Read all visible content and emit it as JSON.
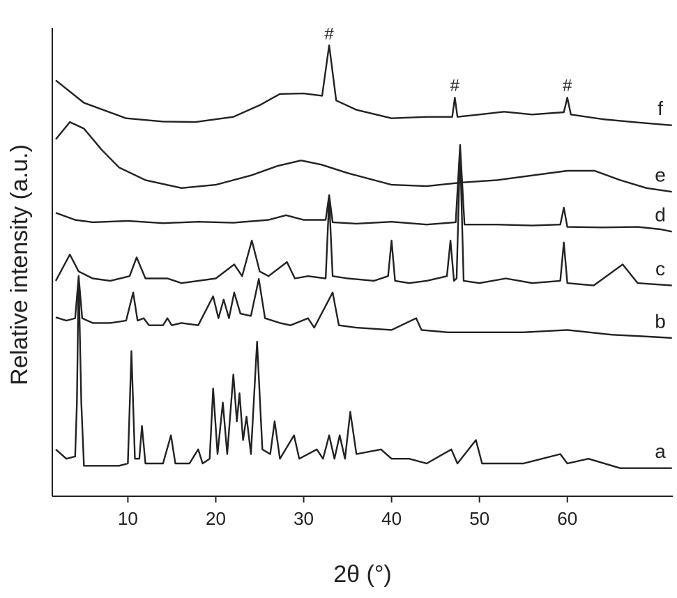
{
  "chart_data": {
    "type": "line",
    "x_label": "2θ (°)",
    "y_label": "Relative intensity (a.u.)",
    "xlim": [
      1.4,
      72
    ],
    "ylim": [
      0,
      100
    ],
    "xticks": [
      10,
      20,
      30,
      40,
      50,
      60
    ],
    "grid": false,
    "series": [
      {
        "name": "a",
        "color": "#222222",
        "x": [
          1.8,
          3,
          4,
          4.2,
          4.4,
          4.7,
          5,
          7,
          9,
          10,
          10.4,
          10.8,
          11.3,
          11.6,
          12,
          14,
          14.9,
          15.4,
          17,
          18,
          18.5,
          19.3,
          19.7,
          20.2,
          20.8,
          21.3,
          22,
          22.4,
          22.7,
          23.1,
          23.5,
          24,
          24.7,
          25.3,
          26.2,
          26.7,
          27.3,
          28.9,
          29.5,
          31.5,
          32.2,
          32.9,
          33.5,
          34.1,
          34.7,
          35.3,
          36,
          38.8,
          40,
          42,
          44,
          46.8,
          47.5,
          49.6,
          50.3,
          55,
          59.2,
          60,
          62.4,
          66,
          68,
          71.9
        ],
        "values": [
          10,
          8,
          8.5,
          20,
          47,
          20,
          6.5,
          6.5,
          6.5,
          7,
          31,
          8,
          8,
          15,
          7,
          7,
          13,
          7,
          7,
          10,
          7,
          8,
          23,
          9,
          20,
          9,
          26,
          16,
          22,
          12,
          17,
          9,
          33,
          10,
          9,
          16,
          8,
          13,
          8,
          10,
          8,
          13,
          8,
          13,
          8,
          18,
          9,
          10,
          8,
          8,
          7,
          10,
          7,
          12,
          7,
          7,
          9,
          7,
          8,
          6,
          6,
          6
        ]
      },
      {
        "name": "b",
        "color": "#222222",
        "x": [
          1.8,
          3,
          4,
          4.4,
          4.8,
          6,
          8,
          9.8,
          10.6,
          11.1,
          11.8,
          12.4,
          14,
          14.5,
          15,
          16.1,
          18,
          19.7,
          20.3,
          20.9,
          21.5,
          22.1,
          22.8,
          24,
          24.9,
          25.6,
          27.3,
          28.5,
          30.5,
          31.2,
          33.3,
          34,
          36,
          40,
          42.8,
          43.4,
          46.4,
          50,
          55,
          60,
          65,
          70,
          71.9
        ],
        "values": [
          38.2,
          37.5,
          38,
          47,
          38,
          37,
          37,
          37.5,
          43.5,
          37.5,
          38,
          36.5,
          36.5,
          38,
          36.5,
          37,
          36.5,
          42.7,
          38,
          42,
          38,
          43.5,
          39,
          38.5,
          46.4,
          38,
          37,
          36.5,
          38,
          36,
          43.5,
          36.5,
          36,
          35.5,
          38,
          35.5,
          35,
          35,
          35,
          35.5,
          34.5,
          34,
          33.8
        ]
      },
      {
        "name": "c",
        "color": "#222222",
        "x": [
          1.8,
          3.4,
          4.4,
          6,
          8,
          10.2,
          11,
          12,
          14.5,
          16.1,
          18,
          20,
          22.1,
          23,
          24.1,
          25,
          26,
          28.1,
          29,
          30.5,
          32.5,
          32.9,
          33.3,
          35,
          38,
          39.6,
          40,
          40.4,
          42,
          44,
          46.3,
          46.7,
          47.1,
          47.4,
          47.8,
          48.2,
          50,
          53,
          56,
          59.2,
          59.6,
          60,
          63,
          66.3,
          68,
          71.9
        ],
        "values": [
          46,
          51.6,
          48,
          46.5,
          46,
          47,
          51,
          46.5,
          46.5,
          45.5,
          46,
          46.5,
          49.5,
          47,
          54.6,
          48,
          47,
          50,
          46.5,
          47,
          46.5,
          63.5,
          47,
          46.5,
          46,
          47,
          54.6,
          46,
          45.5,
          46,
          47,
          54.6,
          46,
          46.5,
          74,
          46,
          45.5,
          46.5,
          45.5,
          46,
          54.2,
          45.5,
          45,
          49.5,
          45.5,
          45
        ]
      },
      {
        "name": "d",
        "color": "#222222",
        "x": [
          1.8,
          4,
          6,
          10,
          14,
          18,
          22,
          26,
          28,
          30,
          32.5,
          32.9,
          33.3,
          36,
          40,
          44,
          47.3,
          47.8,
          48.3,
          52,
          56,
          59.2,
          59.6,
          60,
          64,
          68,
          70.6,
          71.9
        ],
        "values": [
          60.5,
          59,
          58.5,
          58.8,
          58.3,
          58.6,
          58.4,
          59,
          60,
          59,
          59,
          64.3,
          58.5,
          58.2,
          58.6,
          58,
          58.5,
          75,
          58,
          58,
          57.8,
          58,
          61.6,
          57.5,
          57.4,
          57.5,
          57,
          56.5
        ]
      },
      {
        "name": "e",
        "color": "#222222",
        "x": [
          1.8,
          3.4,
          5,
          7,
          9,
          12,
          16.1,
          20,
          24,
          27,
          29.7,
          32,
          35,
          38,
          40,
          44,
          48,
          52,
          56,
          60,
          63.1,
          66,
          69,
          71.9
        ],
        "values": [
          76.2,
          79.9,
          78.5,
          74,
          70.2,
          67.5,
          65.8,
          66.5,
          68.5,
          70.5,
          71.7,
          70.8,
          69,
          67.5,
          66.5,
          66.2,
          67,
          67.5,
          68.5,
          69.5,
          69.5,
          67.5,
          65.8,
          65
        ]
      },
      {
        "name": "f",
        "color": "#222222",
        "x": [
          1.8,
          5,
          9.8,
          14,
          17.7,
          22,
          25,
          27.3,
          30,
          32.1,
          32.9,
          33.7,
          36,
          40,
          44,
          46.9,
          47.2,
          47.5,
          50,
          52.8,
          56,
          59.6,
          60,
          60.4,
          64,
          68,
          71.9
        ],
        "values": [
          88.8,
          84,
          80.7,
          80,
          79.9,
          81,
          83.5,
          85.9,
          86,
          85.5,
          96.3,
          84.5,
          82.5,
          80.7,
          81,
          81,
          85.1,
          81,
          81.5,
          82.1,
          81.5,
          82,
          85.1,
          81.5,
          80.5,
          79.8,
          79.2
        ]
      }
    ],
    "annotations": [
      {
        "text": "#",
        "x": 32.9,
        "y": 98.5
      },
      {
        "text": "#",
        "x": 47.2,
        "y": 87.5
      },
      {
        "text": "#",
        "x": 60,
        "y": 87.5
      }
    ]
  }
}
